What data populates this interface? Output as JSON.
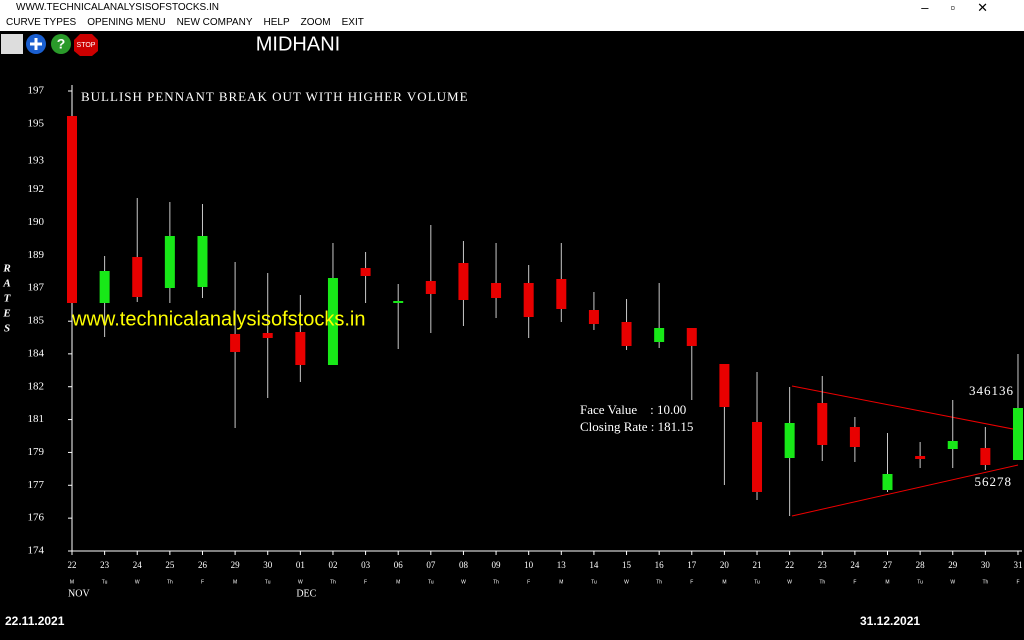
{
  "window_title": "WWW.TECHNICALANALYSISOFSTOCKS.IN",
  "menu": [
    "CURVE TYPES",
    "OPENING MENU",
    "NEW COMPANY",
    "HELP",
    "ZOOM",
    "EXIT"
  ],
  "toolbar": {
    "stop_label": "STOP"
  },
  "from_date": "22.11.2021",
  "to_date": "31.12.2021",
  "chart_data": {
    "type": "candlestick",
    "title": "MIDHANI",
    "annotation": "BULLISH PENNANT BREAK OUT WITH HIGHER VOLUME",
    "watermark": "www.technicalanalysisofstocks.in",
    "y_label": "RATES",
    "info": [
      "Face Value    : 10.00",
      "Closing Rate : 181.15"
    ],
    "volume_labels": [
      "346136",
      "56278"
    ],
    "categories": [
      "22",
      "23",
      "24",
      "25",
      "26",
      "29",
      "30",
      "01",
      "02",
      "03",
      "06",
      "07",
      "08",
      "09",
      "10",
      "13",
      "14",
      "15",
      "16",
      "17",
      "20",
      "21",
      "22",
      "23",
      "24",
      "27",
      "28",
      "29",
      "30",
      "31"
    ],
    "weekdays": [
      "M",
      "Tu",
      "W",
      "Th",
      "F",
      "M",
      "Tu",
      "W",
      "Th",
      "F",
      "M",
      "Tu",
      "W",
      "Th",
      "F",
      "M",
      "Tu",
      "W",
      "Th",
      "F",
      "M",
      "Tu",
      "W",
      "Th",
      "F",
      "M",
      "Tu",
      "W",
      "Th",
      "F"
    ],
    "months": [
      "NOV",
      null,
      null,
      null,
      null,
      null,
      null,
      "DEC",
      null,
      null,
      null,
      null,
      null,
      null,
      null,
      null,
      null,
      null,
      null,
      null,
      null,
      null,
      null,
      null,
      null,
      null,
      null,
      null,
      null,
      null
    ],
    "up_color": "#18e818",
    "down_color": "#e80000",
    "wick_color": "#c8c8c8",
    "open": [
      195.75,
      186.4,
      188.7,
      187.15,
      187.2,
      184.85,
      184.9,
      184.95,
      183.3,
      188.15,
      186.4,
      187.5,
      188.4,
      187.4,
      187.4,
      187.6,
      186.05,
      185.45,
      184.45,
      185.15,
      183.35,
      180.45,
      178.65,
      181.4,
      180.2,
      177.05,
      178.75,
      179.1,
      179.15,
      178.55
    ],
    "high": [
      195.75,
      188.75,
      191.65,
      191.45,
      191.35,
      188.45,
      187.9,
      186.8,
      189.4,
      188.95,
      187.35,
      190.3,
      189.5,
      189.4,
      188.3,
      189.4,
      186.95,
      186.6,
      187.4,
      185.15,
      183.35,
      182.95,
      182.2,
      182.75,
      180.7,
      179.9,
      179.45,
      181.55,
      180.2,
      183.85
    ],
    "low": [
      186.4,
      184.7,
      186.45,
      186.4,
      186.65,
      180.15,
      181.65,
      182.45,
      183.3,
      186.4,
      184.1,
      184.9,
      185.25,
      185.65,
      184.65,
      185.45,
      185.05,
      184.05,
      184.15,
      181.55,
      177.3,
      176.55,
      175.75,
      178.5,
      178.45,
      176.95,
      178.15,
      178.15,
      178.05,
      178.55
    ],
    "close": [
      186.4,
      188.0,
      186.7,
      189.75,
      189.75,
      183.95,
      184.65,
      183.3,
      187.65,
      187.75,
      186.5,
      186.85,
      186.55,
      186.65,
      185.7,
      186.1,
      185.35,
      184.25,
      185.15,
      184.25,
      181.2,
      176.95,
      180.4,
      179.3,
      179.2,
      177.85,
      178.6,
      179.5,
      178.3,
      181.15
    ],
    "ylim": [
      174,
      197
    ],
    "yticks": [
      174,
      {
        "value": 175.643,
        "label": "176"
      },
      {
        "value": 177.286,
        "label": "177"
      },
      {
        "value": 178.929,
        "label": "179"
      },
      {
        "value": 180.571,
        "label": "181"
      },
      {
        "value": 182.214,
        "label": "182"
      },
      {
        "value": 183.857,
        "label": "184"
      },
      {
        "value": 185.49,
        "label": "185"
      },
      {
        "value": 187.143,
        "label": "187"
      },
      {
        "value": 188.786,
        "label": "189"
      },
      {
        "value": 190.429,
        "label": "190"
      },
      {
        "value": 192.071,
        "label": "192"
      },
      {
        "value": 193.49,
        "label": "193"
      },
      {
        "value": 195.357,
        "label": "195"
      },
      197
    ]
  }
}
